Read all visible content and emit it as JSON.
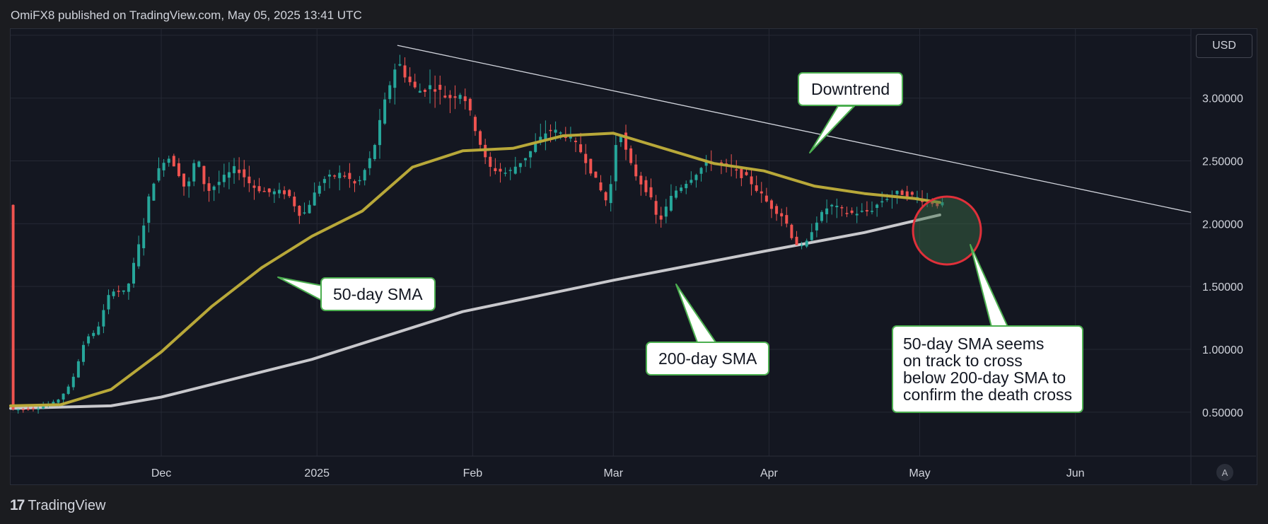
{
  "header": {
    "published_by": "OmiFX8 published on TradingView.com, May 05, 2025 13:41 UTC"
  },
  "footer": {
    "brand": "TradingView",
    "brand_mark": "17"
  },
  "currency": "USD",
  "auto_scale_label": "A",
  "annotations": {
    "downtrend": "Downtrend",
    "sma50": "50-day SMA",
    "sma200": "200-day SMA",
    "note_line1": "50-day SMA seems",
    "note_line2": "on track to cross",
    "note_line3": "below 200-day SMA to",
    "note_line4": "confirm the death cross"
  },
  "colors": {
    "up": "#26a69a",
    "down": "#ef5350",
    "sma50": "#b8a839",
    "sma200": "#c8c8cc",
    "trendline": "#d1d4dc",
    "circle": "#e0303a",
    "callout_border": "#4caf50"
  },
  "chart_data": {
    "type": "candlestick",
    "title": "",
    "x_ticks": [
      "Dec",
      "2025",
      "Feb",
      "Mar",
      "Apr",
      "May",
      "Jun"
    ],
    "x_tick_dates": [
      "2024-12-01",
      "2025-01-01",
      "2025-02-01",
      "2025-03-01",
      "2025-04-01",
      "2025-05-01",
      "2025-06-01"
    ],
    "y_ticks": [
      "0.50000",
      "1.00000",
      "1.50000",
      "2.00000",
      "2.50000",
      "3.00000"
    ],
    "y_tick_values": [
      0.5,
      1.0,
      1.5,
      2.0,
      2.5,
      3.0
    ],
    "ylim": [
      0.15,
      3.55
    ],
    "xlim": [
      "2024-11-01",
      "2025-06-24"
    ],
    "close_points": [
      [
        "2024-11-01",
        0.52
      ],
      [
        "2024-11-06",
        0.53
      ],
      [
        "2024-11-10",
        0.58
      ],
      [
        "2024-11-13",
        0.72
      ],
      [
        "2024-11-16",
        1.1
      ],
      [
        "2024-11-18",
        1.13
      ],
      [
        "2024-11-21",
        1.48
      ],
      [
        "2024-11-24",
        1.45
      ],
      [
        "2024-11-27",
        1.9
      ],
      [
        "2024-11-29",
        2.3
      ],
      [
        "2024-12-02",
        2.55
      ],
      [
        "2024-12-04",
        2.45
      ],
      [
        "2024-12-06",
        2.25
      ],
      [
        "2024-12-08",
        2.55
      ],
      [
        "2024-12-10",
        2.25
      ],
      [
        "2024-12-13",
        2.35
      ],
      [
        "2024-12-16",
        2.45
      ],
      [
        "2024-12-19",
        2.3
      ],
      [
        "2024-12-22",
        2.25
      ],
      [
        "2024-12-26",
        2.25
      ],
      [
        "2024-12-29",
        2.05
      ],
      [
        "2025-01-02",
        2.35
      ],
      [
        "2025-01-06",
        2.4
      ],
      [
        "2025-01-09",
        2.3
      ],
      [
        "2025-01-12",
        2.55
      ],
      [
        "2025-01-15",
        3.05
      ],
      [
        "2025-01-17",
        3.3
      ],
      [
        "2025-01-19",
        3.15
      ],
      [
        "2025-01-21",
        3.05
      ],
      [
        "2025-01-24",
        3.1
      ],
      [
        "2025-01-27",
        3.0
      ],
      [
        "2025-01-30",
        3.05
      ],
      [
        "2025-02-02",
        2.7
      ],
      [
        "2025-02-04",
        2.45
      ],
      [
        "2025-02-08",
        2.4
      ],
      [
        "2025-02-12",
        2.55
      ],
      [
        "2025-02-16",
        2.75
      ],
      [
        "2025-02-20",
        2.7
      ],
      [
        "2025-02-23",
        2.55
      ],
      [
        "2025-02-26",
        2.3
      ],
      [
        "2025-02-28",
        2.15
      ],
      [
        "2025-03-02",
        2.8
      ],
      [
        "2025-03-04",
        2.5
      ],
      [
        "2025-03-06",
        2.35
      ],
      [
        "2025-03-08",
        2.25
      ],
      [
        "2025-03-10",
        2.0
      ],
      [
        "2025-03-13",
        2.25
      ],
      [
        "2025-03-16",
        2.35
      ],
      [
        "2025-03-20",
        2.5
      ],
      [
        "2025-03-24",
        2.45
      ],
      [
        "2025-03-28",
        2.35
      ],
      [
        "2025-04-01",
        2.15
      ],
      [
        "2025-04-04",
        2.05
      ],
      [
        "2025-04-06",
        1.85
      ],
      [
        "2025-04-08",
        1.8
      ],
      [
        "2025-04-10",
        2.0
      ],
      [
        "2025-04-13",
        2.15
      ],
      [
        "2025-04-17",
        2.08
      ],
      [
        "2025-04-21",
        2.1
      ],
      [
        "2025-04-24",
        2.2
      ],
      [
        "2025-04-27",
        2.25
      ],
      [
        "2025-05-01",
        2.2
      ],
      [
        "2025-05-05",
        2.15
      ]
    ],
    "sma50": [
      [
        "2024-11-01",
        0.55
      ],
      [
        "2024-11-11",
        0.56
      ],
      [
        "2024-11-21",
        0.68
      ],
      [
        "2024-12-01",
        0.98
      ],
      [
        "2024-12-11",
        1.34
      ],
      [
        "2024-12-21",
        1.65
      ],
      [
        "2024-12-31",
        1.9
      ],
      [
        "2025-01-10",
        2.1
      ],
      [
        "2025-01-20",
        2.45
      ],
      [
        "2025-01-30",
        2.58
      ],
      [
        "2025-02-09",
        2.6
      ],
      [
        "2025-02-19",
        2.7
      ],
      [
        "2025-03-01",
        2.72
      ],
      [
        "2025-03-11",
        2.6
      ],
      [
        "2025-03-21",
        2.48
      ],
      [
        "2025-03-31",
        2.42
      ],
      [
        "2025-04-10",
        2.3
      ],
      [
        "2025-04-20",
        2.24
      ],
      [
        "2025-04-30",
        2.2
      ],
      [
        "2025-05-05",
        2.17
      ]
    ],
    "sma200": [
      [
        "2024-11-01",
        0.53
      ],
      [
        "2024-11-21",
        0.55
      ],
      [
        "2024-12-01",
        0.62
      ],
      [
        "2024-12-31",
        0.92
      ],
      [
        "2025-01-30",
        1.3
      ],
      [
        "2025-03-01",
        1.55
      ],
      [
        "2025-03-31",
        1.78
      ],
      [
        "2025-04-20",
        1.93
      ],
      [
        "2025-05-05",
        2.07
      ]
    ],
    "trendline": [
      [
        "2025-01-17",
        3.42
      ],
      [
        "2025-06-24",
        2.09
      ]
    ]
  }
}
